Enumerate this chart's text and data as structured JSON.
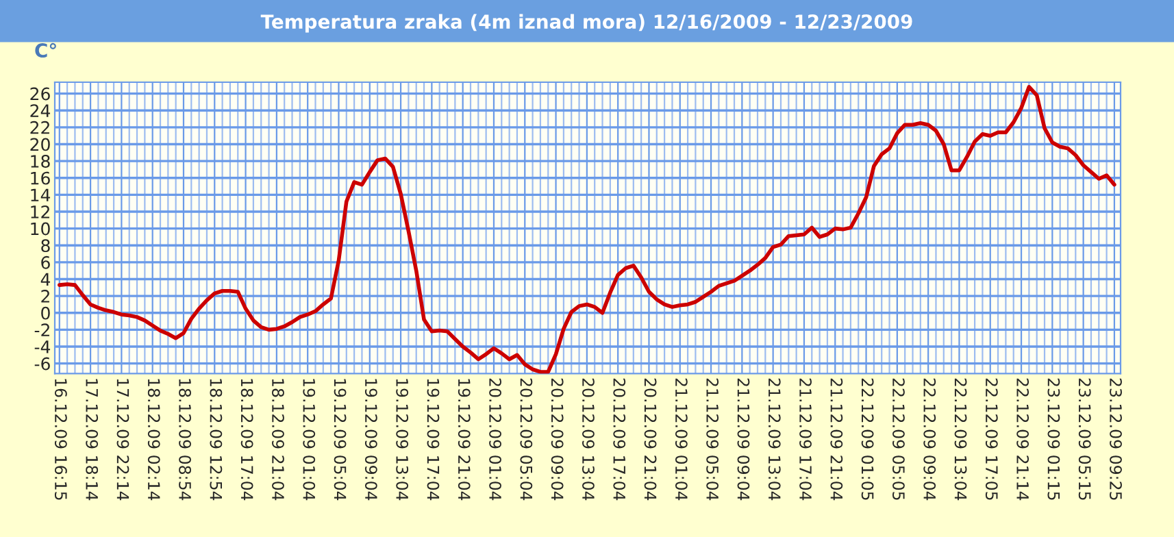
{
  "chart_data": {
    "type": "line",
    "title": "Temperatura zraka (4m iznad mora) 12/16/2009 - 12/23/2009",
    "ylabel": "C°",
    "ylim": [
      -7.2,
      27.35
    ],
    "yticks": [
      -6,
      -4,
      -2,
      0,
      2,
      4,
      6,
      8,
      10,
      12,
      14,
      16,
      18,
      20,
      22,
      24,
      26
    ],
    "categories": [
      "16.12.09 16:15",
      null,
      null,
      null,
      "17.12.09 18:14",
      null,
      null,
      null,
      "17.12.09 22:14",
      null,
      null,
      null,
      "18.12.09 02:14",
      null,
      null,
      null,
      "18.12.09 08:54",
      null,
      null,
      null,
      "18.12.09 12:54",
      null,
      null,
      null,
      "18.12.09 17:04",
      null,
      null,
      null,
      "18.12.09 21:04",
      null,
      null,
      null,
      "19.12.09 01:04",
      null,
      null,
      null,
      "19.12.09 05:04",
      null,
      null,
      null,
      "19.12.09 09:04",
      null,
      null,
      null,
      "19.12.09 13:04",
      null,
      null,
      null,
      "19.12.09 17:04",
      null,
      null,
      null,
      "19.12.09 21:04",
      null,
      null,
      null,
      "20.12.09 01:04",
      null,
      null,
      null,
      "20.12.09 05:04",
      null,
      null,
      null,
      "20.12.09 09:04",
      null,
      null,
      null,
      "20.12.09 13:04",
      null,
      null,
      null,
      "20.12.09 17:04",
      null,
      null,
      null,
      "20.12.09 21:04",
      null,
      null,
      null,
      "21.12.09 01:04",
      null,
      null,
      null,
      "21.12.09 05:04",
      null,
      null,
      null,
      "21.12.09 09:04",
      null,
      null,
      null,
      "21.12.09 13:04",
      null,
      null,
      null,
      "21.12.09 17:04",
      null,
      null,
      null,
      "21.12.09 21:04",
      null,
      null,
      null,
      "22.12.09 01:05",
      null,
      null,
      null,
      "22.12.09 05:05",
      null,
      null,
      null,
      "22.12.09 09:04",
      null,
      null,
      null,
      "22.12.09 13:04",
      null,
      null,
      null,
      "22.12.09 17:05",
      null,
      null,
      null,
      "22.12.09 21:14",
      null,
      null,
      null,
      "23.12.09 01:15",
      null,
      null,
      null,
      "23.12.09 05:15",
      null,
      null,
      null,
      "23.12.09 09:25"
    ],
    "grid": true,
    "marker": "none",
    "line_style": "solid",
    "series": [
      {
        "color": "#cc0000",
        "values": [
          3.3,
          3.4,
          3.3,
          2.1,
          1.0,
          0.6,
          0.3,
          0.1,
          -0.2,
          -0.3,
          -0.5,
          -0.9,
          -1.5,
          -2.1,
          -2.5,
          -3.0,
          -2.4,
          -0.7,
          0.5,
          1.5,
          2.3,
          2.6,
          2.6,
          2.5,
          0.5,
          -0.9,
          -1.7,
          -2.0,
          -1.9,
          -1.6,
          -1.1,
          -0.5,
          -0.2,
          0.2,
          1.0,
          1.7,
          6.2,
          13.2,
          15.5,
          15.2,
          16.7,
          18.1,
          18.3,
          17.3,
          14.1,
          9.7,
          5.0,
          -0.8,
          -2.2,
          -2.1,
          -2.2,
          -3.1,
          -4.0,
          -4.7,
          -5.5,
          -4.9,
          -4.2,
          -4.8,
          -5.5,
          -5.0,
          -6.1,
          -6.7,
          -7.0,
          -7.0,
          -4.9,
          -1.9,
          0.1,
          0.8,
          1.0,
          0.7,
          0.0,
          2.4,
          4.5,
          5.3,
          5.6,
          4.2,
          2.5,
          1.6,
          1.0,
          0.7,
          0.9,
          1.0,
          1.3,
          1.9,
          2.5,
          3.2,
          3.5,
          3.8,
          4.4,
          5.0,
          5.7,
          6.5,
          7.8,
          8.1,
          9.1,
          9.2,
          9.3,
          10.1,
          9.0,
          9.3,
          10.0,
          9.9,
          10.1,
          11.8,
          13.7,
          17.4,
          18.8,
          19.5,
          21.3,
          22.3,
          22.3,
          22.5,
          22.3,
          21.6,
          20.0,
          16.9,
          16.9,
          18.5,
          20.3,
          21.2,
          21.0,
          21.4,
          21.4,
          22.6,
          24.3,
          26.8,
          25.8,
          21.9,
          20.2,
          19.7,
          19.5,
          18.7,
          17.5,
          16.7,
          15.9,
          16.3,
          15.2
        ]
      }
    ]
  }
}
